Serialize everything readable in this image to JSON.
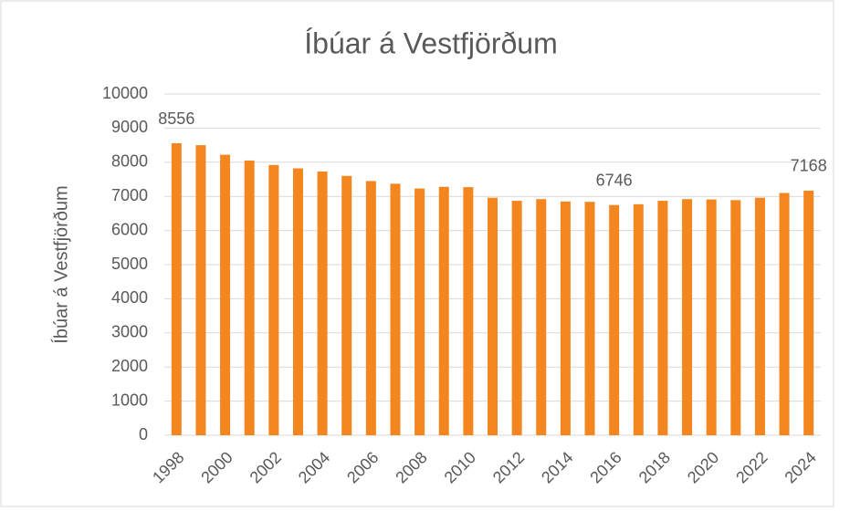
{
  "chart_data": {
    "type": "bar",
    "title": "Íbúar á Vestfjörðum",
    "y_label": "Íbúar á Vestfjörðum",
    "categories": [
      "1998",
      null,
      "2000",
      null,
      "2002",
      null,
      "2004",
      null,
      "2006",
      null,
      "2008",
      null,
      "2010",
      null,
      "2012",
      null,
      "2014",
      null,
      "2016",
      null,
      "2018",
      null,
      "2020",
      null,
      "2022",
      null,
      "2024"
    ],
    "values": [
      8556,
      8500,
      8220,
      8050,
      7920,
      7820,
      7730,
      7600,
      7450,
      7370,
      7230,
      7280,
      7270,
      6960,
      6870,
      6920,
      6850,
      6840,
      6746,
      6770,
      6870,
      6920,
      6910,
      6890,
      6960,
      7100,
      7168
    ],
    "value_labels": [
      "8556",
      null,
      null,
      null,
      null,
      null,
      null,
      null,
      null,
      null,
      null,
      null,
      null,
      null,
      null,
      null,
      null,
      null,
      "6746",
      null,
      null,
      null,
      null,
      null,
      null,
      null,
      "7168"
    ],
    "color": "#f4861f",
    "ylim": [
      0,
      10000
    ],
    "yticks": [
      0,
      1000,
      2000,
      3000,
      4000,
      5000,
      6000,
      7000,
      8000,
      9000,
      10000
    ],
    "grid": true
  }
}
